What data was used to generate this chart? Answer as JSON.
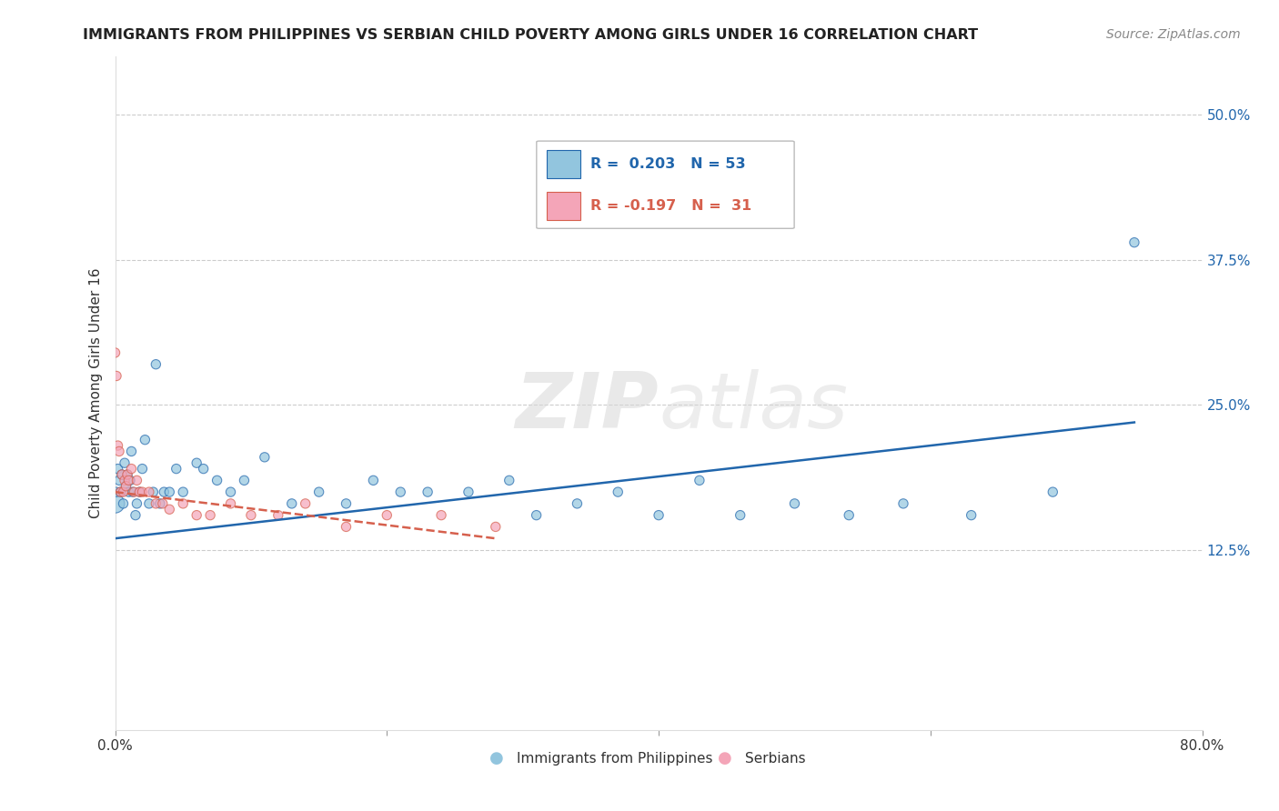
{
  "title": "IMMIGRANTS FROM PHILIPPINES VS SERBIAN CHILD POVERTY AMONG GIRLS UNDER 16 CORRELATION CHART",
  "source": "Source: ZipAtlas.com",
  "ylabel": "Child Poverty Among Girls Under 16",
  "xlim": [
    0.0,
    0.8
  ],
  "ylim": [
    -0.03,
    0.55
  ],
  "color_blue": "#92c5de",
  "color_pink": "#f4a5b8",
  "line_color_blue": "#2166ac",
  "line_color_pink": "#d6604d",
  "watermark_zip": "ZIP",
  "watermark_atlas": "atlas",
  "philippines_x": [
    0.0,
    0.001,
    0.002,
    0.003,
    0.004,
    0.005,
    0.006,
    0.007,
    0.008,
    0.009,
    0.01,
    0.011,
    0.012,
    0.013,
    0.015,
    0.016,
    0.018,
    0.02,
    0.022,
    0.025,
    0.028,
    0.03,
    0.033,
    0.036,
    0.04,
    0.045,
    0.05,
    0.06,
    0.065,
    0.075,
    0.085,
    0.095,
    0.11,
    0.13,
    0.15,
    0.17,
    0.19,
    0.21,
    0.23,
    0.26,
    0.29,
    0.31,
    0.34,
    0.37,
    0.4,
    0.43,
    0.46,
    0.5,
    0.54,
    0.58,
    0.63,
    0.69,
    0.75
  ],
  "philippines_y": [
    0.165,
    0.175,
    0.195,
    0.185,
    0.175,
    0.19,
    0.165,
    0.2,
    0.18,
    0.19,
    0.175,
    0.185,
    0.21,
    0.175,
    0.155,
    0.165,
    0.175,
    0.195,
    0.22,
    0.165,
    0.175,
    0.285,
    0.165,
    0.175,
    0.175,
    0.195,
    0.175,
    0.2,
    0.195,
    0.185,
    0.175,
    0.185,
    0.205,
    0.165,
    0.175,
    0.165,
    0.185,
    0.175,
    0.175,
    0.175,
    0.185,
    0.155,
    0.165,
    0.175,
    0.155,
    0.185,
    0.155,
    0.165,
    0.155,
    0.165,
    0.155,
    0.175,
    0.39
  ],
  "philippines_sizes": [
    220,
    55,
    55,
    55,
    55,
    55,
    55,
    55,
    55,
    55,
    55,
    55,
    55,
    55,
    55,
    55,
    55,
    55,
    55,
    55,
    55,
    55,
    55,
    55,
    55,
    55,
    55,
    55,
    55,
    55,
    55,
    55,
    55,
    55,
    55,
    55,
    55,
    55,
    55,
    55,
    55,
    55,
    55,
    55,
    55,
    55,
    55,
    55,
    55,
    55,
    55,
    55,
    55
  ],
  "serbians_x": [
    0.0,
    0.001,
    0.002,
    0.003,
    0.004,
    0.005,
    0.006,
    0.007,
    0.008,
    0.009,
    0.01,
    0.012,
    0.014,
    0.016,
    0.018,
    0.02,
    0.025,
    0.03,
    0.035,
    0.04,
    0.05,
    0.06,
    0.07,
    0.085,
    0.1,
    0.12,
    0.14,
    0.17,
    0.2,
    0.24,
    0.28
  ],
  "serbians_y": [
    0.295,
    0.275,
    0.215,
    0.21,
    0.175,
    0.19,
    0.175,
    0.185,
    0.18,
    0.19,
    0.185,
    0.195,
    0.175,
    0.185,
    0.175,
    0.175,
    0.175,
    0.165,
    0.165,
    0.16,
    0.165,
    0.155,
    0.155,
    0.165,
    0.155,
    0.155,
    0.165,
    0.145,
    0.155,
    0.155,
    0.145
  ],
  "serbians_sizes": [
    55,
    55,
    55,
    55,
    55,
    55,
    55,
    55,
    55,
    55,
    55,
    55,
    55,
    55,
    55,
    55,
    55,
    55,
    55,
    55,
    55,
    55,
    55,
    55,
    55,
    55,
    55,
    55,
    55,
    55,
    55
  ],
  "blue_line_x": [
    0.0,
    0.75
  ],
  "blue_line_y": [
    0.135,
    0.235
  ],
  "pink_line_x": [
    0.0,
    0.28
  ],
  "pink_line_y": [
    0.175,
    0.135
  ]
}
